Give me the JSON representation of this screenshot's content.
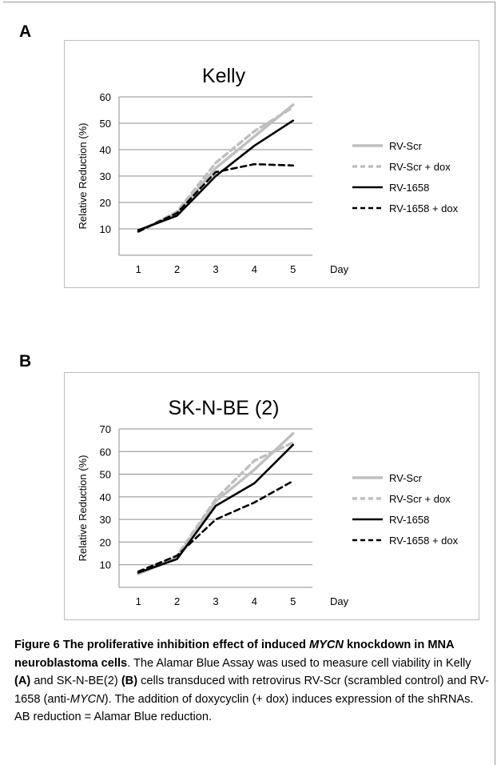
{
  "panels": [
    {
      "letter": "A",
      "chart_data": {
        "type": "line",
        "title": "Kelly",
        "xlabel": "Day",
        "ylabel": "Relative Reduction (%)",
        "categories": [
          "1",
          "2",
          "3",
          "4",
          "5"
        ],
        "yticks": [
          10,
          20,
          30,
          40,
          50,
          60
        ],
        "ylim": [
          0,
          60
        ],
        "grid": true,
        "legend_position": "right",
        "series": [
          {
            "name": "RV-Scr",
            "values": [
              9,
              16,
              33,
              45,
              57
            ],
            "color": "#bfbfbf",
            "dash": "solid"
          },
          {
            "name": "RV-Scr + dox",
            "values": [
              9,
              16.5,
              35,
              47,
              56
            ],
            "color": "#bfbfbf",
            "dash": "dashed"
          },
          {
            "name": "RV-1658",
            "values": [
              9.5,
              15,
              30,
              41.5,
              51
            ],
            "color": "#000000",
            "dash": "solid"
          },
          {
            "name": "RV-1658 + dox",
            "values": [
              9,
              16,
              31.5,
              34.5,
              34
            ],
            "color": "#000000",
            "dash": "dashed"
          }
        ]
      }
    },
    {
      "letter": "B",
      "chart_data": {
        "type": "line",
        "title": "SK-N-BE (2)",
        "xlabel": "Day",
        "ylabel": "Relative Reduction (%)",
        "categories": [
          "1",
          "2",
          "3",
          "4",
          "5"
        ],
        "yticks": [
          10,
          20,
          30,
          40,
          50,
          60,
          70
        ],
        "ylim": [
          0,
          70
        ],
        "grid": true,
        "legend_position": "right",
        "series": [
          {
            "name": "RV-Scr",
            "values": [
              6,
              13,
              38,
              52,
              68
            ],
            "color": "#bfbfbf",
            "dash": "solid"
          },
          {
            "name": "RV-Scr + dox",
            "values": [
              6,
              14,
              39,
              56,
              64
            ],
            "color": "#bfbfbf",
            "dash": "dashed"
          },
          {
            "name": "RV-1658",
            "values": [
              6.5,
              12.5,
              36,
              46,
              63
            ],
            "color": "#000000",
            "dash": "solid"
          },
          {
            "name": "RV-1658 + dox",
            "values": [
              7,
              14,
              30,
              37.5,
              47
            ],
            "color": "#000000",
            "dash": "dashed"
          }
        ]
      }
    }
  ],
  "caption": {
    "figure_label": "Figure 6 ",
    "title_a": "The proliferative inhibition effect of induced ",
    "title_gene": "MYCN",
    "title_b": " knockdown in MNA neuroblastoma cells",
    "text_1": ". The Alamar Blue Assay was used to measure cell viability in Kelly ",
    "ref_a": "(A)",
    "text_2": " and SK-N-BE(2) ",
    "ref_b": "(B)",
    "text_3": " cells transduced with retrovirus RV-Scr (scrambled control) and RV-1658 (anti-",
    "gene_2": "MYCN",
    "text_4": "). The addition of doxycyclin (+ dox) induces expression of the shRNAs. AB reduction = Alamar Blue reduction."
  }
}
